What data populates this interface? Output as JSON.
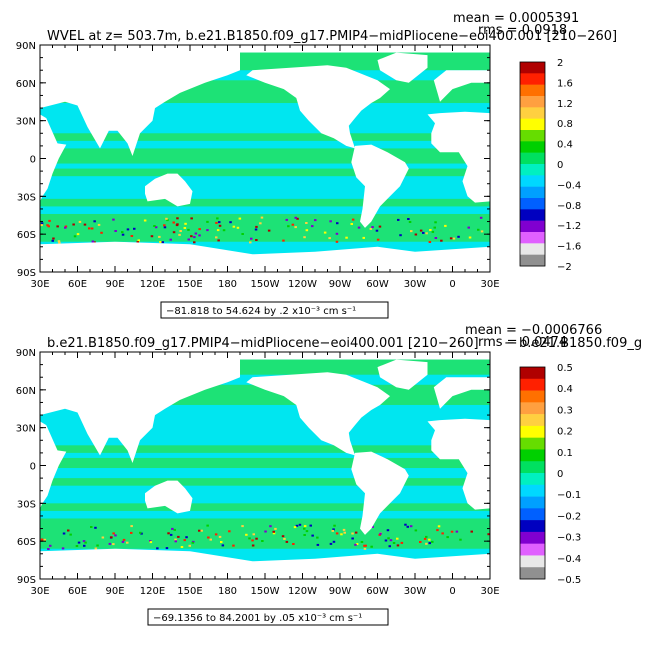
{
  "chart_data": [
    {
      "type": "heatmap",
      "title_left": "WVEL at z= 503.7m, b.e21.B1850.f09_g17.PMIP4−midPliocene−eoi400.001",
      "title_right": "[210−260]",
      "mean_label": "mean = 0.0005391",
      "rms_label": "rms = 0.0918",
      "range_label": "−81.818 to 54.624 by .2 x10⁻³ cm s⁻¹",
      "x_ticks": [
        "30E",
        "60E",
        "90E",
        "120E",
        "150E",
        "180",
        "150W",
        "120W",
        "90W",
        "60W",
        "30W",
        "0",
        "30E"
      ],
      "y_ticks": [
        "90N",
        "60N",
        "30N",
        "0",
        "30S",
        "60S",
        "90S"
      ],
      "colorbar_labels": [
        "2",
        "1.6",
        "1.2",
        "0.8",
        "0.4",
        "0",
        "−0.4",
        "−0.8",
        "−1.2",
        "−1.6",
        "−2"
      ],
      "colorbar_colors": [
        "#b00000",
        "#ff2000",
        "#ff7000",
        "#ffa040",
        "#ffd040",
        "#ffff00",
        "#66dd00",
        "#00d000",
        "#00e060",
        "#00f0c0",
        "#00d8ff",
        "#00a0ff",
        "#0060ff",
        "#0000c0",
        "#8000d0",
        "#e060ff",
        "#e8e8e8",
        "#909090"
      ]
    },
    {
      "type": "heatmap",
      "title_left": "b.e21.B1850.f09_g17.PMIP4−midPliocene−eoi400.001",
      "title_right": "[210−260]",
      "title_overlap": "− b.e21.B1850.f09_g",
      "mean_label": "mean = −0.0006766",
      "rms_label": "rms = 0.0474",
      "range_label": "−69.1356 to 84.2001 by .05 x10⁻³ cm s⁻¹",
      "x_ticks": [
        "30E",
        "60E",
        "90E",
        "120E",
        "150E",
        "180",
        "150W",
        "120W",
        "90W",
        "60W",
        "30W",
        "0",
        "30E"
      ],
      "y_ticks": [
        "90N",
        "60N",
        "30N",
        "0",
        "30S",
        "60S",
        "90S"
      ],
      "colorbar_labels": [
        "0.5",
        "0.4",
        "0.3",
        "0.2",
        "0.1",
        "0",
        "−0.1",
        "−0.2",
        "−0.3",
        "−0.4",
        "−0.5"
      ],
      "colorbar_colors": [
        "#b00000",
        "#ff2000",
        "#ff7000",
        "#ffa040",
        "#ffd040",
        "#ffff00",
        "#66dd00",
        "#00d000",
        "#00e060",
        "#00f0c0",
        "#00d8ff",
        "#00a0ff",
        "#0060ff",
        "#0000c0",
        "#8000d0",
        "#e060ff",
        "#e8e8e8",
        "#909090"
      ]
    }
  ],
  "colors": {
    "ocean_main": "#00e6f0",
    "ocean_green": "#22e060",
    "land": "#ffffff"
  }
}
